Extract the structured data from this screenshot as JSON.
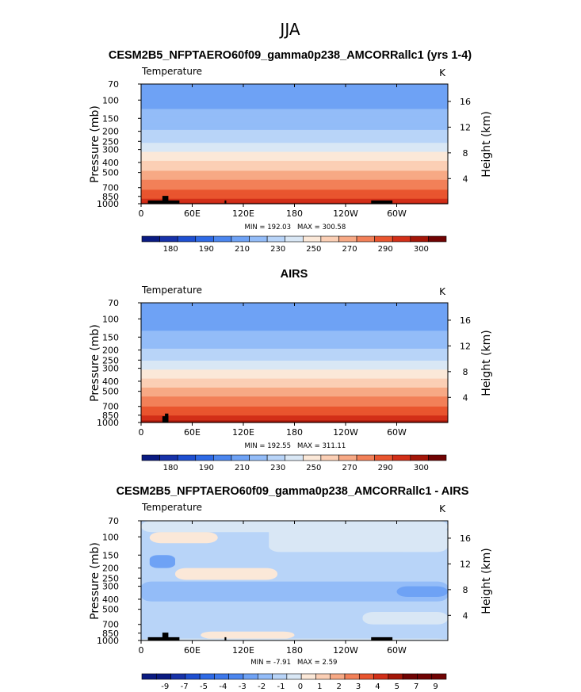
{
  "figure": {
    "season": "JJA",
    "lon_ticks": [
      "0",
      "60E",
      "120E",
      "180",
      "120W",
      "60W"
    ],
    "pressure_ticks": [
      "70",
      "100",
      "150",
      "200",
      "250",
      "300",
      "400",
      "500",
      "700",
      "850",
      "1000"
    ],
    "height_ticks": [
      "4",
      "8",
      "12",
      "16"
    ],
    "y_left_label": "Pressure (mb)",
    "y_right_label": "Height (km)"
  },
  "chart_data": [
    {
      "type": "heatmap",
      "title": "CESM2B5_NFPTAERO60f09_gamma0p238_AMCORRallc1 (yrs 1-4)",
      "variable": "Temperature",
      "units": "K",
      "xlabel": "",
      "ylabel": "Pressure (mb)",
      "y2label": "Height (km)",
      "xlim": [
        0,
        360
      ],
      "ylim": [
        1000,
        70
      ],
      "min_label": "MIN = 192.03",
      "max_label": "MAX = 300.58",
      "min": 192.03,
      "max": 300.58,
      "colorbar": {
        "levels": [
          170,
          180,
          185,
          190,
          200,
          210,
          220,
          230,
          240,
          250,
          260,
          270,
          280,
          290,
          295,
          300
        ],
        "labels": [
          "180",
          "190",
          "210",
          "230",
          "250",
          "270",
          "290",
          "300"
        ],
        "colors": [
          "#0a1b82",
          "#1732a9",
          "#1e4fd1",
          "#2e6ae6",
          "#4b86ef",
          "#6ea2f5",
          "#93bcf8",
          "#b8d4f8",
          "#d9e7f5",
          "#fbe8d8",
          "#fbcfb5",
          "#f7a985",
          "#f28058",
          "#e9552f",
          "#d22f18",
          "#a41608",
          "#700303"
        ]
      },
      "profile": [
        {
          "p": 70,
          "t": 208
        },
        {
          "p": 100,
          "t": 206
        },
        {
          "p": 150,
          "t": 214
        },
        {
          "p": 200,
          "t": 221
        },
        {
          "p": 250,
          "t": 228
        },
        {
          "p": 300,
          "t": 237
        },
        {
          "p": 400,
          "t": 252
        },
        {
          "p": 500,
          "t": 262
        },
        {
          "p": 700,
          "t": 278
        },
        {
          "p": 850,
          "t": 287
        },
        {
          "p": 1000,
          "t": 296
        }
      ]
    },
    {
      "type": "heatmap",
      "title": "AIRS",
      "variable": "Temperature",
      "units": "K",
      "xlabel": "",
      "ylabel": "Pressure (mb)",
      "y2label": "Height (km)",
      "xlim": [
        0,
        360
      ],
      "ylim": [
        1000,
        70
      ],
      "min_label": "MIN = 192.55",
      "max_label": "MAX = 311.11",
      "min": 192.55,
      "max": 311.11,
      "colorbar": {
        "levels": [
          170,
          180,
          185,
          190,
          200,
          210,
          220,
          230,
          240,
          250,
          260,
          270,
          280,
          290,
          295,
          300
        ],
        "labels": [
          "180",
          "190",
          "210",
          "230",
          "250",
          "270",
          "290",
          "300"
        ],
        "colors": [
          "#0a1b82",
          "#1732a9",
          "#1e4fd1",
          "#2e6ae6",
          "#4b86ef",
          "#6ea2f5",
          "#93bcf8",
          "#b8d4f8",
          "#d9e7f5",
          "#fbe8d8",
          "#fbcfb5",
          "#f7a985",
          "#f28058",
          "#e9552f",
          "#d22f18",
          "#a41608",
          "#700303"
        ]
      },
      "profile": [
        {
          "p": 70,
          "t": 207
        },
        {
          "p": 100,
          "t": 205
        },
        {
          "p": 150,
          "t": 213
        },
        {
          "p": 200,
          "t": 221
        },
        {
          "p": 250,
          "t": 229
        },
        {
          "p": 300,
          "t": 239
        },
        {
          "p": 400,
          "t": 253
        },
        {
          "p": 500,
          "t": 264
        },
        {
          "p": 700,
          "t": 280
        },
        {
          "p": 850,
          "t": 289
        },
        {
          "p": 1000,
          "t": 298
        }
      ]
    },
    {
      "type": "heatmap",
      "title": "CESM2B5_NFPTAERO60f09_gamma0p238_AMCORRallc1 - AIRS",
      "variable": "Temperature",
      "units": "K",
      "xlabel": "",
      "ylabel": "Pressure (mb)",
      "y2label": "Height (km)",
      "xlim": [
        0,
        360
      ],
      "ylim": [
        1000,
        70
      ],
      "min_label": "MIN =   -7.91",
      "max_label": "MAX =    2.59",
      "min": -7.91,
      "max": 2.59,
      "colorbar": {
        "levels": [
          -10,
          -9,
          -8,
          -7,
          -6,
          -5,
          -4,
          -3,
          -2,
          -1,
          0,
          1,
          2,
          3,
          4,
          5,
          6,
          7,
          8,
          9
        ],
        "labels": [
          "-9",
          "-7",
          "-5",
          "-4",
          "-3",
          "-2",
          "-1",
          "0",
          "1",
          "2",
          "3",
          "4",
          "5",
          "7",
          "9"
        ],
        "colors": [
          "#0a1b82",
          "#0a1b82",
          "#1732a9",
          "#1e4fd1",
          "#2e6ae6",
          "#3d78eb",
          "#4b86ef",
          "#6ea2f5",
          "#93bcf8",
          "#b8d4f8",
          "#d9e7f5",
          "#fbe8d8",
          "#fbcfb5",
          "#f7a985",
          "#f28058",
          "#e9552f",
          "#d22f18",
          "#a41608",
          "#700303",
          "#700303",
          "#700303"
        ]
      },
      "regions": [
        {
          "lon": [
            0,
            360
          ],
          "p": [
            70,
            1000
          ],
          "v": -1.5
        },
        {
          "lon": [
            0,
            360
          ],
          "p": [
            270,
            420
          ],
          "v": -2.5
        },
        {
          "lon": [
            0,
            360
          ],
          "p": [
            70,
            90
          ],
          "v": -0.5
        },
        {
          "lon": [
            10,
            90
          ],
          "p": [
            90,
            115
          ],
          "v": 0.5
        },
        {
          "lon": [
            150,
            360
          ],
          "p": [
            80,
            140
          ],
          "v": -0.5
        },
        {
          "lon": [
            40,
            160
          ],
          "p": [
            200,
            260
          ],
          "v": 0.5
        },
        {
          "lon": [
            260,
            360
          ],
          "p": [
            530,
            700
          ],
          "v": -0.5
        },
        {
          "lon": [
            70,
            180
          ],
          "p": [
            820,
            960
          ],
          "v": 0.5
        },
        {
          "lon": [
            10,
            40
          ],
          "p": [
            150,
            200
          ],
          "v": -3.5
        },
        {
          "lon": [
            300,
            360
          ],
          "p": [
            300,
            380
          ],
          "v": -3.5
        },
        {
          "lon": [
            0,
            360
          ],
          "p": [
            960,
            1000
          ],
          "v": -0.5
        }
      ]
    }
  ]
}
